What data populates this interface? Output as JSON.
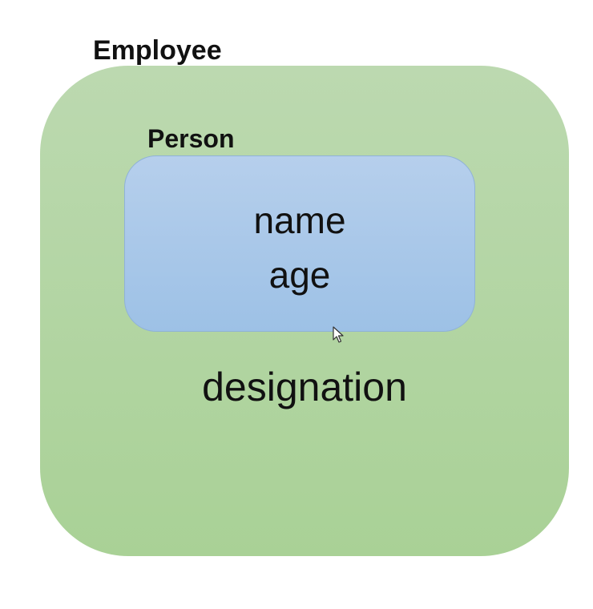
{
  "diagram": {
    "outer": {
      "label": "Employee",
      "fill_color": "#a9d196",
      "fields": [
        "designation"
      ]
    },
    "inner": {
      "label": "Person",
      "fill_color": "#9dc1e6",
      "fields": [
        "name",
        "age"
      ]
    }
  },
  "cursor": {
    "icon": "pointer-cursor-icon"
  }
}
